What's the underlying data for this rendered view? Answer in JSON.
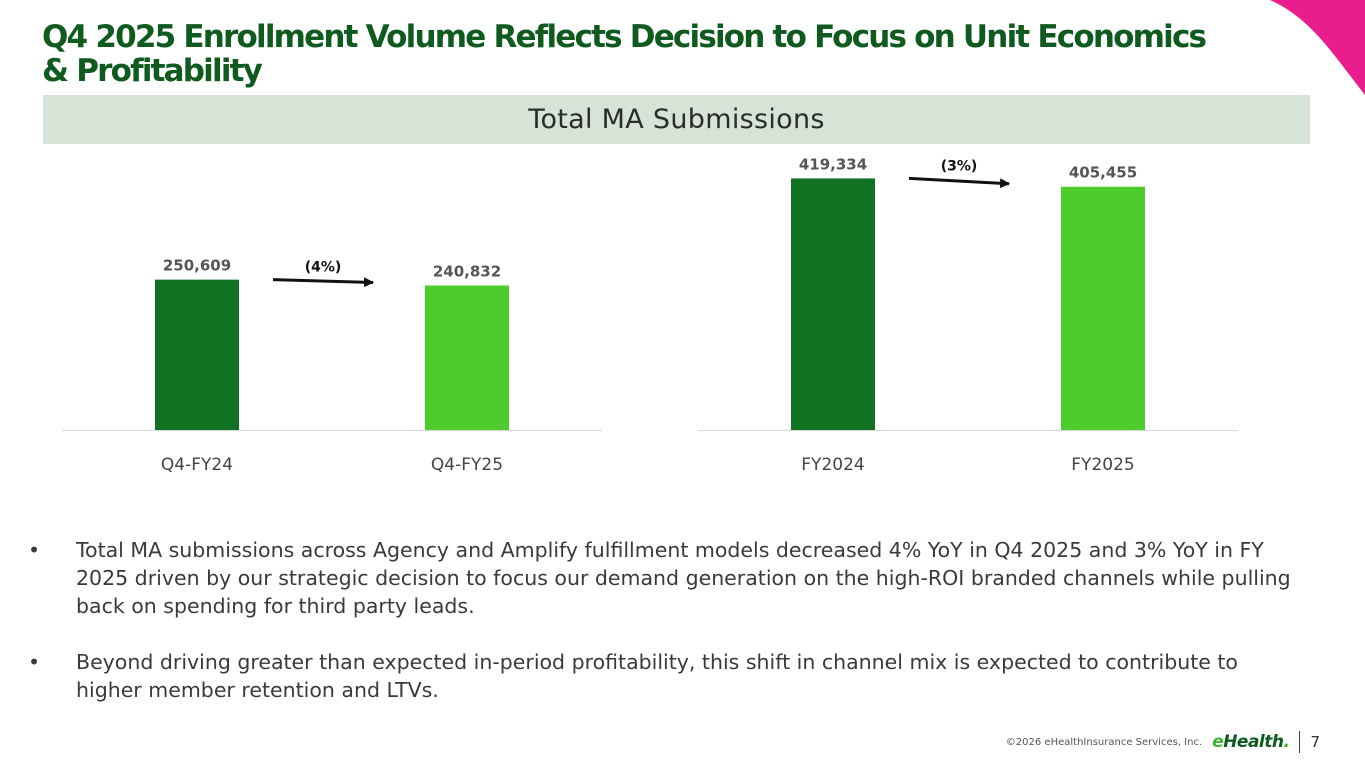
{
  "title": "Q4 2025 Enrollment Volume Reflects Decision to Focus on Unit Economics & Profitability",
  "band_title": "Total MA Submissions",
  "colors": {
    "dark": "#0f7323",
    "light": "#4ecb2d",
    "title": "#0e5a1f",
    "band": "#d5e4d6",
    "accent": "#e91e8c"
  },
  "chart_data": [
    {
      "type": "bar",
      "title": "Total MA Submissions",
      "categories": [
        "Q4-FY24",
        "Q4-FY25"
      ],
      "values": [
        250609,
        240832
      ],
      "labels": [
        "250,609",
        "240,832"
      ],
      "change_label": "(4%)",
      "ylim": [
        0,
        420000
      ]
    },
    {
      "type": "bar",
      "title": "Total MA Submissions",
      "categories": [
        "FY2024",
        "FY2025"
      ],
      "values": [
        419334,
        405455
      ],
      "labels": [
        "419,334",
        "405,455"
      ],
      "change_label": "(3%)",
      "ylim": [
        0,
        420000
      ]
    }
  ],
  "bullets": [
    "Total MA submissions across Agency and Amplify fulfillment models decreased 4% YoY in Q4 2025 and 3% YoY in FY 2025 driven by our strategic decision to focus our demand generation on the high-ROI branded channels while pulling back on spending for third party leads.",
    "Beyond driving greater than expected in-period profitability, this shift in channel mix is expected to contribute to higher member retention and LTVs."
  ],
  "bullet_symbol": "•",
  "footer": {
    "copyright": "©2026 eHealthInsurance Services, Inc.",
    "logo_e": "e",
    "logo_rest": "Health",
    "logo_mark": ".",
    "page_number": "7"
  }
}
